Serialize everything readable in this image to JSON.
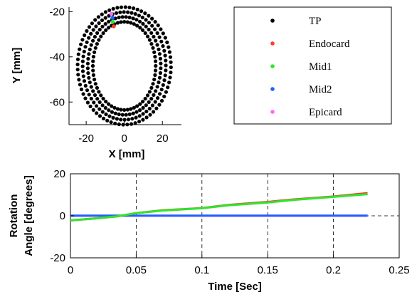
{
  "chart_data": [
    {
      "type": "scatter",
      "title": "",
      "xlabel": "X [mm]",
      "ylabel": "Y [mm]",
      "xlim": [
        -29,
        30
      ],
      "ylim": [
        -70,
        -18
      ],
      "xticks": [
        -20,
        0,
        20
      ],
      "yticks": [
        -20,
        -40,
        -60
      ],
      "grid": false,
      "legend": "right",
      "ring": {
        "center": [
          0,
          -44
        ],
        "inner_radius_x": [
          16.5,
          18.5
        ],
        "outer_radius_x": [
          20.5,
          24.5
        ],
        "inner_radius_y": [
          19.5,
          21.5
        ],
        "outer_radius_y": [
          22.5,
          26
        ],
        "points_per_layer": 60
      },
      "series": [
        {
          "name": "TP",
          "color": "#000000",
          "description_points": "ring"
        },
        {
          "name": "Endocard",
          "color": "#ff3b2e",
          "points": [
            [
              -5.5,
              -26.5
            ]
          ]
        },
        {
          "name": "Mid1",
          "color": "#2ee62e",
          "points": [
            [
              -6.0,
              -24.5
            ]
          ]
        },
        {
          "name": "Mid2",
          "color": "#2060ff",
          "points": [
            [
              -6.2,
              -22.8
            ]
          ]
        },
        {
          "name": "Epicard",
          "color": "#ff66ff",
          "points": [
            [
              -6.8,
              -21.0
            ]
          ]
        }
      ]
    },
    {
      "type": "line",
      "title": "",
      "xlabel": "Time [Sec]",
      "ylabel_lines": [
        "Rotation",
        "Angle [degrees]"
      ],
      "xlim": [
        0,
        0.25
      ],
      "ylim": [
        -20,
        20
      ],
      "xticks": [
        "0",
        "0.05",
        "0.1",
        "0.15",
        "0.2",
        "0.25"
      ],
      "yticks": [
        "20",
        "0",
        "-20"
      ],
      "grid": true,
      "series": [
        {
          "name": "Endocard",
          "color": "#ff3b2e",
          "x": [
            0,
            0.02,
            0.035,
            0.05,
            0.07,
            0.1,
            0.12,
            0.15,
            0.17,
            0.2,
            0.226
          ],
          "y": [
            -2.2,
            -1.2,
            -0.3,
            1.3,
            2.6,
            3.7,
            5.2,
            6.6,
            7.8,
            9.2,
            10.8
          ]
        },
        {
          "name": "Mid1",
          "color": "#2ee62e",
          "x": [
            0,
            0.02,
            0.035,
            0.05,
            0.07,
            0.1,
            0.12,
            0.15,
            0.17,
            0.2,
            0.226
          ],
          "y": [
            -2.2,
            -1.2,
            -0.3,
            1.3,
            2.5,
            3.6,
            5.0,
            6.3,
            7.6,
            9.0,
            10.3
          ]
        },
        {
          "name": "Mid2",
          "color": "#2060ff",
          "x": [
            0,
            0.226
          ],
          "y": [
            0.1,
            0.1
          ]
        },
        {
          "name": "Epicard",
          "color": "#ff66ff",
          "x": [
            0,
            0.226
          ],
          "y": [
            0,
            0
          ]
        }
      ]
    }
  ]
}
